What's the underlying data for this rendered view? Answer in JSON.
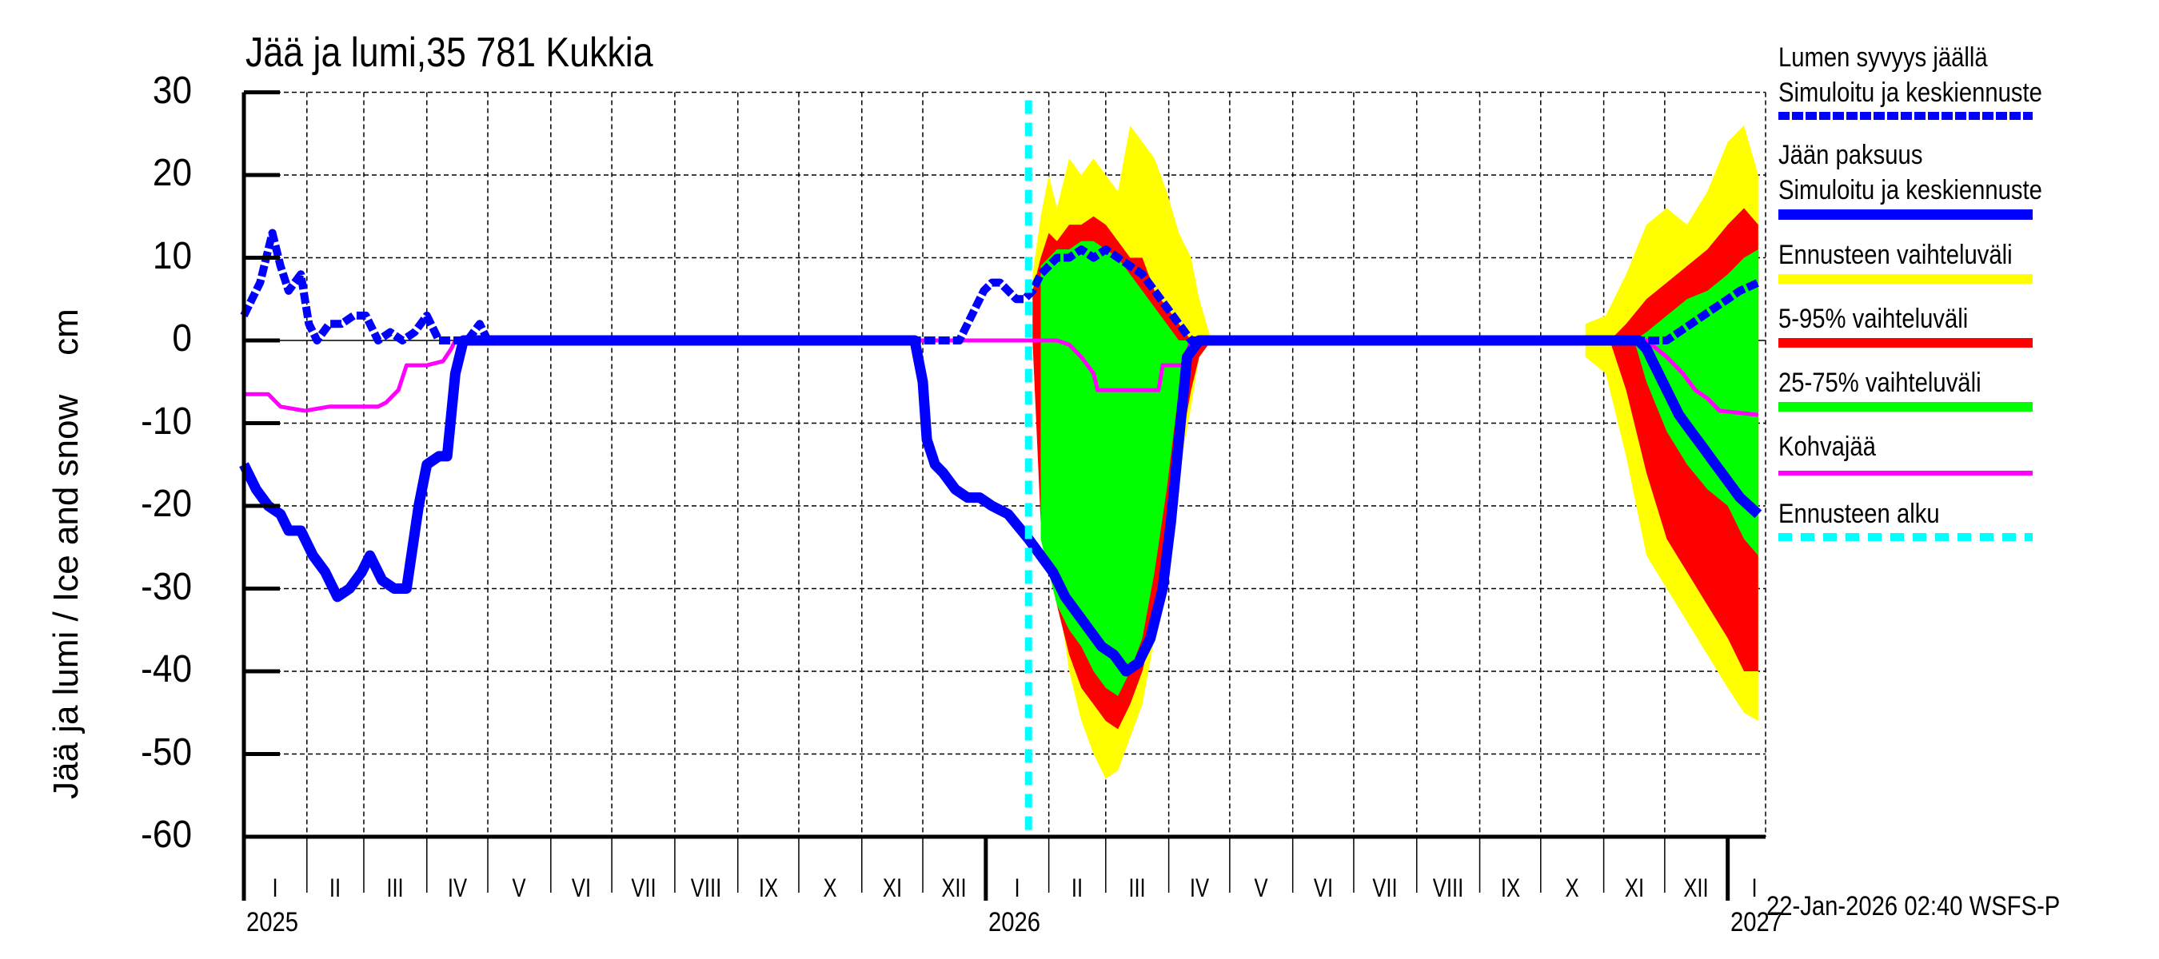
{
  "chart_data": {
    "type": "area",
    "title": "Jää ja lumi,35 781 Kukkia",
    "xlabel": "",
    "ylabel": "Jää ja lumi / Ice and snow    cm",
    "ylim": [
      -60,
      30
    ],
    "yticks": [
      "30",
      "20",
      "10",
      "0",
      "-10",
      "-20",
      "-30",
      "-40",
      "-50",
      "-60"
    ],
    "ytick_values": [
      30,
      20,
      10,
      0,
      -10,
      -20,
      -30,
      -40,
      -50,
      -60
    ],
    "x_range": [
      "2025-01-01",
      "2027-01-20"
    ],
    "grid": true,
    "legend_position": "right",
    "months": [
      "I",
      "II",
      "III",
      "IV",
      "V",
      "VI",
      "VII",
      "VIII",
      "IX",
      "X",
      "XI",
      "XII"
    ],
    "years": [
      "2025",
      "2026",
      "2027"
    ],
    "forecast_start": "2026-01-22",
    "timestamp": "22-Jan-2026 02:40 WSFS-P",
    "colors": {
      "snow": "#0000ff",
      "ice": "#0000ff",
      "range_full": "#ffff00",
      "range_5_95": "#ff0000",
      "range_25_75": "#00ff00",
      "slush_ice": "#ff00ff",
      "forecast_start": "#00ffff"
    },
    "legend": [
      {
        "label1": "Lumen syvyys jäällä",
        "label2": "Simuloitu ja keskiennuste",
        "style": "dashed",
        "color": "#0000ff"
      },
      {
        "label1": "Jään paksuus",
        "label2": "Simuloitu ja keskiennuste",
        "style": "solid-thick",
        "color": "#0000ff"
      },
      {
        "label1": "Ennusteen vaihteluväli",
        "label2": "",
        "style": "band",
        "color": "#ffff00"
      },
      {
        "label1": "5-95% vaihteluväli",
        "label2": "",
        "style": "band",
        "color": "#ff0000"
      },
      {
        "label1": "25-75% vaihteluväli",
        "label2": "",
        "style": "band",
        "color": "#00ff00"
      },
      {
        "label1": "Kohvajää",
        "label2": "",
        "style": "solid",
        "color": "#ff00ff"
      },
      {
        "label1": "Ennusteen alku",
        "label2": "",
        "style": "dotted",
        "color": "#00ffff"
      }
    ],
    "series": [
      {
        "name": "Lumen syvyys jäällä (snow depth on ice, cm)",
        "x_day": [
          0,
          8,
          14,
          18,
          22,
          28,
          32,
          36,
          42,
          48,
          54,
          60,
          66,
          72,
          78,
          84,
          90,
          96,
          102,
          106,
          110,
          116,
          118,
          120,
          122,
          130,
          140,
          150,
          160,
          320,
          352,
          356,
          360,
          364,
          368,
          372,
          376,
          380,
          384,
          388,
          392,
          396,
          400,
          406,
          412,
          418,
          424,
          430,
          436,
          442,
          448,
          454,
          460,
          466,
          470,
          474,
          480,
          680,
          690,
          700,
          706,
          712,
          718,
          724,
          730,
          736,
          745
        ],
        "values": [
          3,
          7,
          13,
          9,
          6,
          8,
          2,
          0,
          2,
          2,
          3,
          3,
          0,
          1,
          0,
          1,
          3,
          0,
          0,
          0,
          0,
          2,
          1,
          0,
          0,
          0,
          0,
          0,
          0,
          0,
          0,
          2,
          4,
          6,
          7,
          7,
          6,
          5,
          5,
          6,
          8,
          9,
          10,
          10,
          11,
          10,
          11,
          10,
          9,
          8,
          6,
          4,
          2,
          0,
          0,
          0,
          0,
          0,
          0,
          0,
          1,
          2,
          3,
          4,
          5,
          6,
          7
        ]
      },
      {
        "name": "Jään paksuus (ice thickness, cm, plotted negative)",
        "x_day": [
          0,
          6,
          12,
          18,
          22,
          28,
          34,
          40,
          46,
          52,
          58,
          62,
          68,
          74,
          80,
          86,
          90,
          96,
          100,
          104,
          108,
          112,
          114,
          118,
          122,
          160,
          330,
          334,
          336,
          340,
          344,
          350,
          356,
          362,
          368,
          376,
          386,
          392,
          398,
          404,
          410,
          416,
          422,
          428,
          434,
          440,
          446,
          452,
          456,
          460,
          464,
          470,
          680,
          686,
          690,
          694,
          700,
          706,
          712,
          718,
          724,
          730,
          736,
          745
        ],
        "values": [
          -15,
          -18,
          -20,
          -21,
          -23,
          -23,
          -26,
          -28,
          -31,
          -30,
          -28,
          -26,
          -29,
          -30,
          -30,
          -20,
          -15,
          -14,
          -14,
          -4,
          0,
          0,
          0,
          0,
          0,
          0,
          0,
          -5,
          -12,
          -15,
          -16,
          -18,
          -19,
          -19,
          -20,
          -21,
          -24,
          -26,
          -28,
          -31,
          -33,
          -35,
          -37,
          -38,
          -40,
          -39,
          -36,
          -30,
          -22,
          -12,
          -2,
          0,
          0,
          0,
          -1,
          -3,
          -6,
          -9,
          -11,
          -13,
          -15,
          -17,
          -19,
          -21
        ]
      },
      {
        "name": "Kohvajää (slush ice, cm)",
        "x_day": [
          0,
          12,
          18,
          30,
          42,
          66,
          70,
          76,
          80,
          90,
          98,
          102,
          104,
          120,
          400,
          406,
          412,
          418,
          420,
          440,
          450,
          452,
          458,
          462,
          466,
          690,
          700,
          708,
          714,
          720,
          726,
          745
        ],
        "values": [
          -6.5,
          -6.5,
          -8,
          -8.5,
          -8,
          -8,
          -7.5,
          -6,
          -3,
          -3,
          -2.5,
          -1,
          0,
          0,
          0,
          -0.5,
          -2,
          -4,
          -6,
          -6,
          -6,
          -3,
          -3,
          -3,
          0,
          0,
          -2,
          -4,
          -6,
          -7,
          -8.5,
          -9
        ]
      },
      {
        "name": "Ennusteen vaihteluväli (full range)",
        "x_day": [
          388,
          392,
          396,
          400,
          406,
          412,
          418,
          424,
          430,
          436,
          442,
          448,
          454,
          460,
          466,
          470,
          476
        ],
        "upper": [
          8,
          15,
          20,
          16,
          22,
          20,
          22,
          20,
          18,
          26,
          24,
          22,
          18,
          13,
          10,
          5,
          0
        ],
        "lower": [
          0,
          -20,
          -24,
          -30,
          -40,
          -46,
          -50,
          -53,
          -52,
          -48,
          -44,
          -36,
          -30,
          -16,
          -8,
          -2,
          0
        ]
      },
      {
        "name": "5-95% vaihteluväli",
        "x_day": [
          388,
          392,
          396,
          400,
          406,
          412,
          418,
          424,
          430,
          436,
          442,
          448,
          454,
          460,
          466,
          470,
          476
        ],
        "upper": [
          6,
          10,
          13,
          12,
          14,
          14,
          15,
          14,
          12,
          10,
          10,
          6,
          4,
          2,
          0,
          0,
          0
        ],
        "lower": [
          0,
          -22,
          -27,
          -32,
          -38,
          -42,
          -44,
          -46,
          -47,
          -44,
          -40,
          -34,
          -28,
          -14,
          -6,
          -2,
          0
        ]
      },
      {
        "name": "25-75% vaihteluväli",
        "x_day": [
          392,
          396,
          400,
          406,
          412,
          418,
          424,
          430,
          436,
          442,
          448,
          454,
          460,
          466
        ],
        "upper": [
          9,
          10,
          11,
          11,
          12,
          12,
          11,
          10,
          8,
          6,
          4,
          2,
          0,
          0
        ],
        "lower": [
          -24,
          -28,
          -32,
          -35,
          -37,
          -40,
          -42,
          -43,
          -40,
          -36,
          -28,
          -18,
          -6,
          0
        ]
      },
      {
        "name": "Ennusteen vaihteluväli (late 2026)",
        "x_day": [
          660,
          670,
          680,
          690,
          700,
          710,
          720,
          730,
          738,
          745
        ],
        "upper": [
          2,
          3,
          8,
          14,
          16,
          14,
          18,
          24,
          26,
          20
        ],
        "lower": [
          -2,
          -4,
          -14,
          -26,
          -30,
          -34,
          -38,
          -42,
          -45,
          -46
        ]
      },
      {
        "name": "5-95% vaihteluväli (late 2026)",
        "x_day": [
          672,
          680,
          690,
          700,
          710,
          720,
          730,
          738,
          745
        ],
        "upper": [
          0,
          2,
          5,
          7,
          9,
          11,
          14,
          16,
          14
        ],
        "lower": [
          0,
          -6,
          -16,
          -24,
          -28,
          -32,
          -36,
          -40,
          -40
        ]
      },
      {
        "name": "25-75% vaihteluväli (late 2026)",
        "x_day": [
          684,
          690,
          700,
          710,
          720,
          730,
          738,
          745
        ],
        "upper": [
          0,
          1,
          3,
          5,
          6,
          8,
          10,
          11
        ],
        "lower": [
          0,
          -5,
          -11,
          -15,
          -18,
          -20,
          -24,
          -26
        ]
      }
    ]
  }
}
